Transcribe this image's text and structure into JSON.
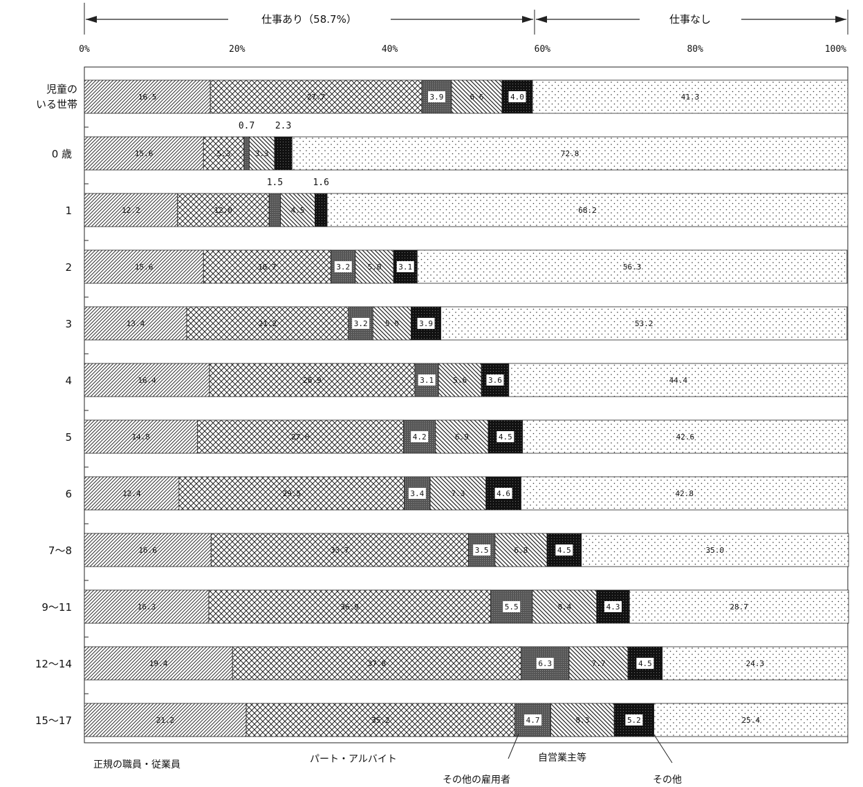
{
  "chart_data": {
    "type": "bar",
    "orientation": "horizontal",
    "stacked": true,
    "xlim": [
      0,
      100
    ],
    "x_ticks": [
      "0%",
      "20%",
      "40%",
      "60%",
      "80%",
      "100%"
    ],
    "header": {
      "work_label": "仕事あり（58.7%）",
      "nowork_label": "仕事なし",
      "split_value": 58.7
    },
    "categories": [
      "児童の\nいる世帯",
      "0 歳",
      "1",
      "2",
      "3",
      "4",
      "5",
      "6",
      "7～8",
      "9～11",
      "12～14",
      "15～17"
    ],
    "series": [
      {
        "name": "正規の職員・従業員",
        "pattern": "diag-left",
        "values": [
          16.5,
          15.6,
          12.2,
          15.6,
          13.4,
          16.4,
          14.8,
          12.4,
          16.6,
          16.3,
          19.4,
          21.2
        ],
        "labels": [
          "16.5",
          "15.6",
          "12.2",
          "15.6",
          "13.4",
          "16.4",
          "14.8",
          "12.4",
          "16.6",
          "16.3",
          "19.4",
          "21.2"
        ]
      },
      {
        "name": "パート・アルバイト",
        "pattern": "crosshatch",
        "values": [
          27.7,
          5.3,
          12.0,
          16.7,
          21.2,
          26.9,
          27.0,
          29.5,
          33.7,
          36.9,
          37.8,
          35.2
        ],
        "labels": [
          "27.7",
          "5.3",
          "12.0",
          "16.7",
          "21.2",
          "26.9",
          "27.0",
          "29.5",
          "33.7",
          "36.9",
          "37.8",
          "35.2"
        ]
      },
      {
        "name": "その他の雇用者",
        "pattern": "dark-gray",
        "values": [
          3.9,
          0.7,
          1.5,
          3.2,
          3.2,
          3.1,
          4.2,
          3.4,
          3.5,
          5.5,
          6.3,
          4.7
        ],
        "labels": [
          "3.9",
          "0.7",
          "1.5",
          "3.2",
          "3.2",
          "3.1",
          "4.2",
          "3.4",
          "3.5",
          "5.5",
          "6.3",
          "4.7"
        ]
      },
      {
        "name": "自営業主等",
        "pattern": "diag-right",
        "values": [
          6.6,
          3.3,
          4.5,
          5.0,
          5.0,
          5.6,
          6.9,
          7.3,
          6.8,
          8.4,
          7.7,
          8.3
        ],
        "labels": [
          "6.6",
          "3.3",
          "4.5",
          "5.0",
          "5.0",
          "5.6",
          "6.9",
          "7.3",
          "6.8",
          "8.4",
          "7.7",
          "8.3"
        ]
      },
      {
        "name": "その他",
        "pattern": "black",
        "values": [
          4.0,
          2.3,
          1.6,
          3.1,
          3.9,
          3.6,
          4.5,
          4.6,
          4.5,
          4.3,
          4.5,
          5.2
        ],
        "labels": [
          "4.0",
          "2.3",
          "1.6",
          "3.1",
          "3.9",
          "3.6",
          "4.5",
          "4.6",
          "4.5",
          "4.3",
          "4.5",
          "5.2"
        ]
      },
      {
        "name": "仕事なし",
        "pattern": "dots",
        "values": [
          41.3,
          72.8,
          68.2,
          56.3,
          53.2,
          44.4,
          42.6,
          42.8,
          35.0,
          28.7,
          24.3,
          25.4
        ],
        "labels": [
          "41.3",
          "72.8",
          "68.2",
          "56.3",
          "53.2",
          "44.4",
          "42.6",
          "42.8",
          "35.0",
          "28.7",
          "24.3",
          "25.4"
        ]
      }
    ],
    "external_labels": [
      {
        "row": 1,
        "series": 2,
        "text": "0.7"
      },
      {
        "row": 1,
        "series": 4,
        "text": "2.3"
      },
      {
        "row": 2,
        "series": 2,
        "text": "1.5"
      },
      {
        "row": 2,
        "series": 4,
        "text": "1.6"
      }
    ],
    "legend": [
      "正規の職員・従業員",
      "パート・アルバイト",
      "その他の雇用者",
      "自営業主等",
      "その他"
    ],
    "grid": false
  }
}
